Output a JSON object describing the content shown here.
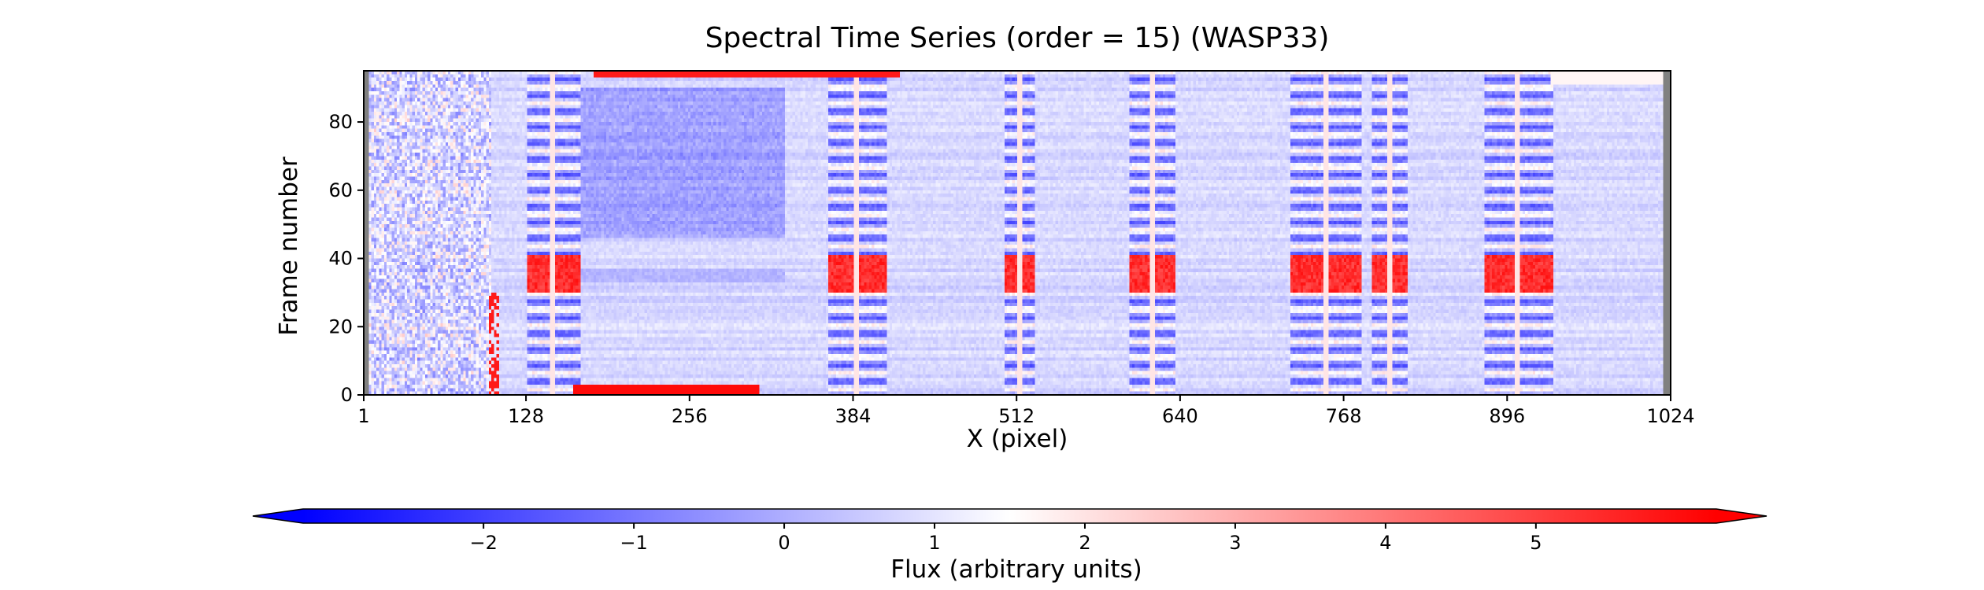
{
  "chart_data": {
    "type": "heatmap",
    "title": "Spectral Time Series (order = 15) (WASP33)",
    "xlabel": "X (pixel)",
    "ylabel": "Frame number",
    "xlim": [
      1,
      1024
    ],
    "ylim": [
      0,
      95
    ],
    "xticks": [
      "1",
      "128",
      "256",
      "384",
      "512",
      "640",
      "768",
      "896",
      "1024"
    ],
    "yticks": [
      "0",
      "20",
      "40",
      "60",
      "80"
    ],
    "colorbar": {
      "label": "Flux (arbitrary units)",
      "ticks": [
        "−2",
        "−1",
        "0",
        "1",
        "2",
        "3",
        "4",
        "5"
      ],
      "range": [
        -3.2,
        6.2
      ],
      "extend": "both",
      "cmap": "bwr",
      "colors": {
        "low": "#0000ff",
        "mid": "#ffffff",
        "high": "#ff0000"
      }
    },
    "masked_columns": {
      "left": [
        1,
        4
      ],
      "right": [
        1018,
        1024
      ],
      "color": "#808080"
    },
    "features": [
      {
        "name": "absorption band",
        "x_range": [
          128,
          170
        ]
      },
      {
        "name": "absorption band",
        "x_range": [
          364,
          410
        ]
      },
      {
        "name": "absorption band",
        "x_range": [
          502,
          526
        ]
      },
      {
        "name": "absorption band",
        "x_range": [
          600,
          636
        ]
      },
      {
        "name": "absorption band",
        "x_range": [
          727,
          782
        ]
      },
      {
        "name": "absorption band",
        "x_range": [
          790,
          818
        ]
      },
      {
        "name": "absorption band",
        "x_range": [
          878,
          932
        ]
      }
    ],
    "transit_rows": [
      30,
      40
    ],
    "notes": "strong emission residual near frames 0-2 over x 165-310; noisy region x 1-100"
  }
}
